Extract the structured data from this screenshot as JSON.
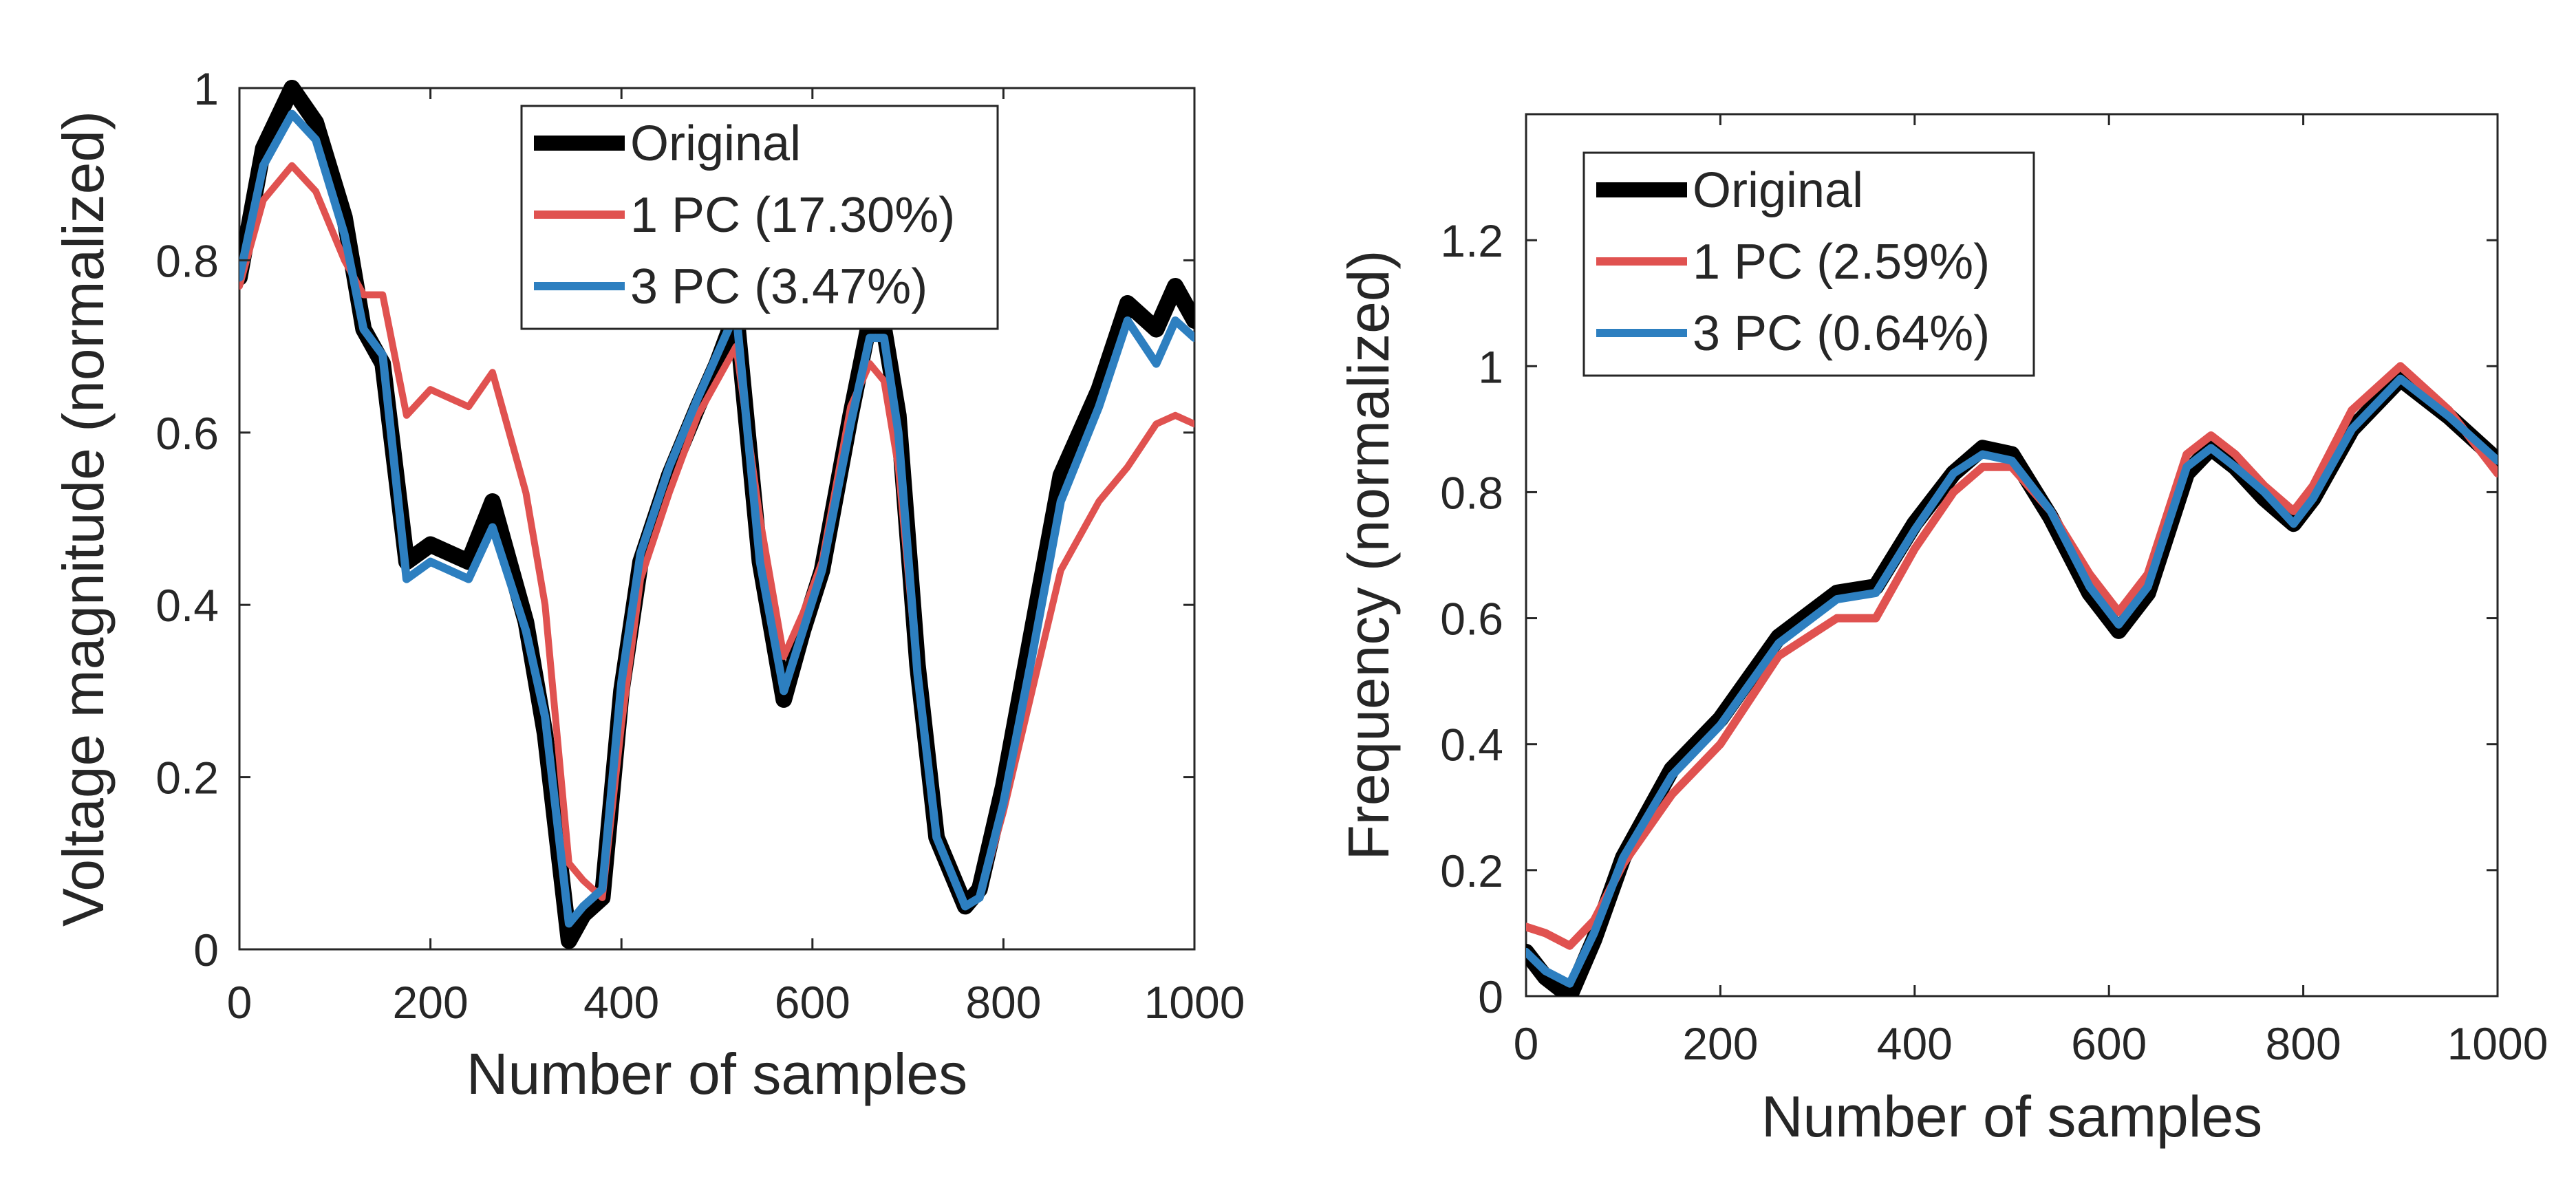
{
  "chart_data": [
    {
      "id": "voltage",
      "type": "line",
      "title": "",
      "xlabel": "Number of samples",
      "ylabel": "Voltage magnitude (normalized)",
      "xlim": [
        0,
        1000
      ],
      "ylim": [
        0,
        1
      ],
      "xticks": [
        0,
        200,
        400,
        600,
        800,
        1000
      ],
      "xtick_labels": [
        "0",
        "200",
        "400",
        "600",
        "800",
        "1000"
      ],
      "yticks": [
        0,
        0.2,
        0.4,
        0.6,
        0.8,
        1
      ],
      "ytick_labels": [
        "0",
        "0.2",
        "0.4",
        "0.6",
        "0.8",
        "1"
      ],
      "legend_position": "top-center",
      "x": [
        0,
        25,
        55,
        80,
        110,
        130,
        150,
        175,
        200,
        240,
        265,
        300,
        320,
        345,
        360,
        380,
        400,
        420,
        450,
        480,
        500,
        520,
        545,
        570,
        590,
        610,
        640,
        660,
        675,
        690,
        710,
        730,
        760,
        775,
        800,
        830,
        860,
        900,
        930,
        960,
        980,
        1000
      ],
      "series": [
        {
          "name": "Original",
          "label": "Original",
          "color": "#000000",
          "values": [
            0.78,
            0.93,
            1.0,
            0.96,
            0.85,
            0.72,
            0.68,
            0.45,
            0.47,
            0.45,
            0.52,
            0.38,
            0.25,
            0.01,
            0.04,
            0.06,
            0.3,
            0.45,
            0.55,
            0.63,
            0.68,
            0.74,
            0.45,
            0.29,
            0.37,
            0.44,
            0.62,
            0.73,
            0.72,
            0.62,
            0.33,
            0.13,
            0.05,
            0.07,
            0.19,
            0.37,
            0.55,
            0.65,
            0.75,
            0.72,
            0.77,
            0.73
          ]
        },
        {
          "name": "1 PC",
          "label": "1 PC (17.30%)",
          "color": "#e05250",
          "values": [
            0.77,
            0.87,
            0.91,
            0.88,
            0.8,
            0.76,
            0.76,
            0.62,
            0.65,
            0.63,
            0.67,
            0.53,
            0.4,
            0.1,
            0.08,
            0.06,
            0.26,
            0.43,
            0.53,
            0.62,
            0.66,
            0.7,
            0.5,
            0.34,
            0.39,
            0.45,
            0.63,
            0.68,
            0.66,
            0.56,
            0.32,
            0.13,
            0.05,
            0.06,
            0.16,
            0.3,
            0.44,
            0.52,
            0.56,
            0.61,
            0.62,
            0.61
          ]
        },
        {
          "name": "3 PC",
          "label": "3 PC (3.47%)",
          "color": "#2d7fc0",
          "values": [
            0.78,
            0.91,
            0.97,
            0.94,
            0.83,
            0.72,
            0.69,
            0.43,
            0.45,
            0.43,
            0.49,
            0.37,
            0.27,
            0.03,
            0.05,
            0.07,
            0.31,
            0.46,
            0.56,
            0.64,
            0.69,
            0.74,
            0.45,
            0.3,
            0.37,
            0.44,
            0.61,
            0.71,
            0.71,
            0.6,
            0.32,
            0.13,
            0.05,
            0.06,
            0.17,
            0.34,
            0.52,
            0.63,
            0.73,
            0.68,
            0.73,
            0.71
          ]
        }
      ]
    },
    {
      "id": "frequency",
      "type": "line",
      "title": "",
      "xlabel": "Number of samples",
      "ylabel": "Frequency (normalized)",
      "xlim": [
        0,
        1000
      ],
      "ylim": [
        0,
        1.4
      ],
      "xticks": [
        0,
        200,
        400,
        600,
        800,
        1000
      ],
      "xtick_labels": [
        "0",
        "200",
        "400",
        "600",
        "800",
        "1000"
      ],
      "yticks": [
        0,
        0.2,
        0.4,
        0.6,
        0.8,
        1,
        1.2
      ],
      "ytick_labels": [
        "0",
        "0.2",
        "0.4",
        "0.6",
        "0.8",
        "1",
        "1.2"
      ],
      "legend_position": "top-left",
      "x": [
        0,
        20,
        45,
        70,
        100,
        150,
        200,
        260,
        320,
        360,
        400,
        440,
        470,
        500,
        540,
        580,
        610,
        640,
        680,
        705,
        730,
        760,
        790,
        810,
        850,
        900,
        950,
        1000
      ],
      "series": [
        {
          "name": "Original",
          "label": "Original",
          "color": "#000000",
          "values": [
            0.07,
            0.03,
            0.0,
            0.09,
            0.22,
            0.36,
            0.44,
            0.57,
            0.64,
            0.65,
            0.75,
            0.83,
            0.87,
            0.86,
            0.76,
            0.64,
            0.58,
            0.64,
            0.83,
            0.87,
            0.84,
            0.79,
            0.75,
            0.79,
            0.9,
            0.98,
            0.92,
            0.85
          ]
        },
        {
          "name": "1 PC",
          "label": "1 PC (2.59%)",
          "color": "#e05250",
          "values": [
            0.11,
            0.1,
            0.08,
            0.12,
            0.21,
            0.32,
            0.4,
            0.54,
            0.6,
            0.6,
            0.71,
            0.8,
            0.84,
            0.84,
            0.77,
            0.67,
            0.61,
            0.67,
            0.86,
            0.89,
            0.86,
            0.81,
            0.77,
            0.81,
            0.93,
            1.0,
            0.93,
            0.83
          ]
        },
        {
          "name": "3 PC",
          "label": "3 PC (0.64%)",
          "color": "#2d7fc0",
          "values": [
            0.07,
            0.04,
            0.02,
            0.1,
            0.22,
            0.35,
            0.43,
            0.56,
            0.63,
            0.64,
            0.74,
            0.83,
            0.86,
            0.85,
            0.77,
            0.65,
            0.59,
            0.65,
            0.84,
            0.87,
            0.84,
            0.8,
            0.75,
            0.79,
            0.9,
            0.98,
            0.92,
            0.85
          ]
        }
      ]
    }
  ]
}
